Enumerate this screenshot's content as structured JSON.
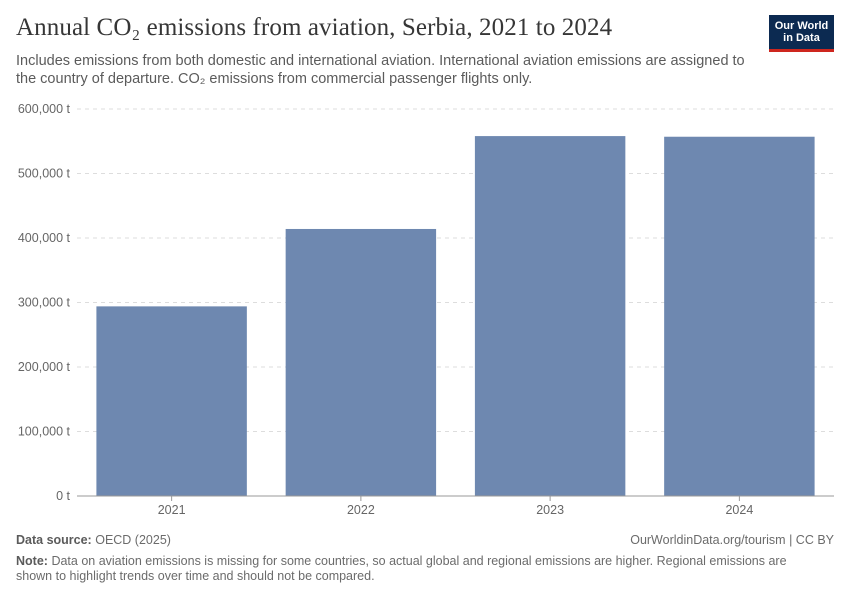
{
  "header": {
    "title": "Annual CO₂ emissions from aviation, Serbia, 2021 to 2024",
    "subtitle": "Includes emissions from both domestic and international aviation. International aviation emissions are assigned to the country of departure. CO₂ emissions from commercial passenger flights only."
  },
  "logo": {
    "line1": "Our World",
    "line2": "in Data",
    "bg_color": "#0c2a51",
    "accent_color": "#ce261e"
  },
  "chart_data": {
    "type": "bar",
    "title": "Annual CO₂ emissions from aviation, Serbia, 2021 to 2024",
    "categories": [
      "2021",
      "2022",
      "2023",
      "2024"
    ],
    "values": [
      294000,
      414000,
      558000,
      557000
    ],
    "ylim": [
      0,
      600000
    ],
    "yticks": [
      0,
      100000,
      200000,
      300000,
      400000,
      500000,
      600000
    ],
    "ytick_labels": [
      "0 t",
      "100,000 t",
      "200,000 t",
      "300,000 t",
      "400,000 t",
      "500,000 t",
      "600,000 t"
    ],
    "xlabel": "",
    "ylabel": "",
    "bar_color": "#6e88b0",
    "grid": true
  },
  "footer": {
    "source_label": "Data source:",
    "source_text": "OECD (2025)",
    "license": "OurWorldinData.org/tourism | CC BY",
    "note_label": "Note:",
    "note_text": "Data on aviation emissions is missing for some countries, so actual global and regional emissions are higher. Regional emissions are shown to highlight trends over time and should not be compared."
  }
}
